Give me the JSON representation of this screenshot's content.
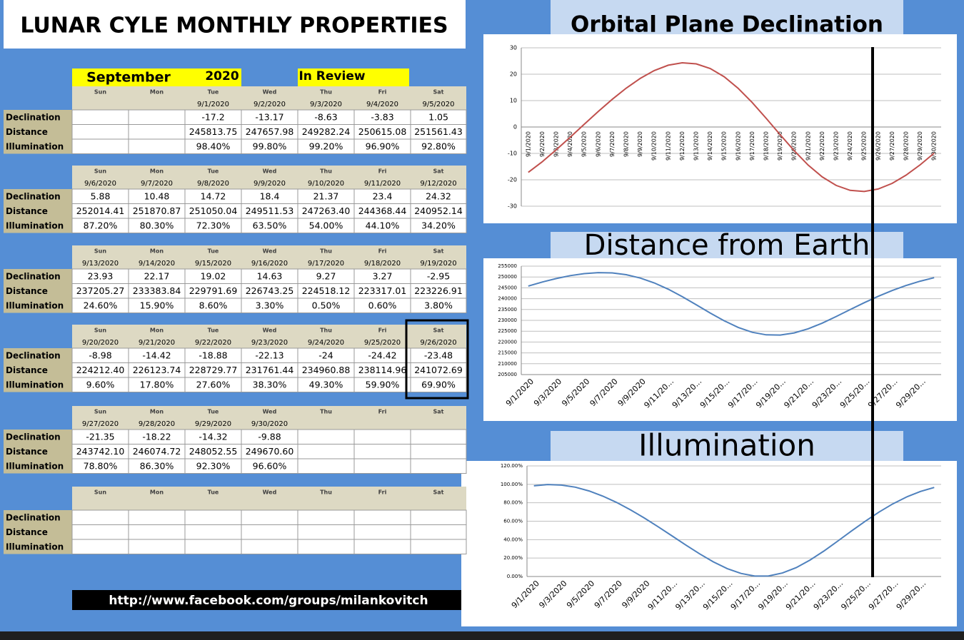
{
  "title": "LUNAR CYLE MONTHLY PROPERTIES",
  "calendar": {
    "month": "September",
    "year": "2020",
    "note": "In Review",
    "weeks": [
      {
        "days": [
          "Sun",
          "Mon",
          "Tue",
          "Wed",
          "Thu",
          "Fri",
          "Sat"
        ],
        "dates": [
          null,
          null,
          "9/1/2020",
          "9/2/2020",
          "9/3/2020",
          "9/4/2020",
          "9/5/2020"
        ],
        "rows": [
          {
            "label": "Declination",
            "cells": [
              null,
              null,
              "-17.2",
              "-13.17",
              "-8.63",
              "-3.83",
              "1.05"
            ]
          },
          {
            "label": "Distance",
            "cells": [
              null,
              null,
              "245813.75",
              "247657.98",
              "249282.24",
              "250615.08",
              "251561.43"
            ]
          },
          {
            "label": "Illumination",
            "cells": [
              null,
              null,
              "98.40%",
              "99.80%",
              "99.20%",
              "96.90%",
              "92.80%"
            ]
          }
        ]
      },
      {
        "days": [
          "Sun",
          "Mon",
          "Tue",
          "Wed",
          "Thu",
          "Fri",
          "Sat"
        ],
        "dates": [
          "9/6/2020",
          "9/7/2020",
          "9/8/2020",
          "9/9/2020",
          "9/10/2020",
          "9/11/2020",
          "9/12/2020"
        ],
        "rows": [
          {
            "label": "Declination",
            "cells": [
              "5.88",
              "10.48",
              "14.72",
              "18.4",
              "21.37",
              "23.4",
              "24.32"
            ]
          },
          {
            "label": "Distance",
            "cells": [
              "252014.41",
              "251870.87",
              "251050.04",
              "249511.53",
              "247263.40",
              "244368.44",
              "240952.14"
            ]
          },
          {
            "label": "Illumination",
            "cells": [
              "87.20%",
              "80.30%",
              "72.30%",
              "63.50%",
              "54.00%",
              "44.10%",
              "34.20%"
            ]
          }
        ]
      },
      {
        "days": [
          "Sun",
          "Mon",
          "Tue",
          "Wed",
          "Thu",
          "Fri",
          "Sat"
        ],
        "dates": [
          "9/13/2020",
          "9/14/2020",
          "9/15/2020",
          "9/16/2020",
          "9/17/2020",
          "9/18/2020",
          "9/19/2020"
        ],
        "rows": [
          {
            "label": "Declination",
            "cells": [
              "23.93",
              "22.17",
              "19.02",
              "14.63",
              "9.27",
              "3.27",
              "-2.95"
            ]
          },
          {
            "label": "Distance",
            "cells": [
              "237205.27",
              "233383.84",
              "229791.69",
              "226743.25",
              "224518.12",
              "223317.01",
              "223226.91"
            ]
          },
          {
            "label": "Illumination",
            "cells": [
              "24.60%",
              "15.90%",
              "8.60%",
              "3.30%",
              "0.50%",
              "0.60%",
              "3.80%"
            ]
          }
        ]
      },
      {
        "days": [
          "Sun",
          "Mon",
          "Tue",
          "Wed",
          "Thu",
          "Fri",
          "Sat"
        ],
        "dates": [
          "9/20/2020",
          "9/21/2020",
          "9/22/2020",
          "9/23/2020",
          "9/24/2020",
          "9/25/2020",
          "9/26/2020"
        ],
        "rows": [
          {
            "label": "Declination",
            "cells": [
              "-8.98",
              "-14.42",
              "-18.88",
              "-22.13",
              "-24",
              "-24.42",
              "-23.48"
            ]
          },
          {
            "label": "Distance",
            "cells": [
              "224212.40",
              "226123.74",
              "228729.77",
              "231761.44",
              "234960.88",
              "238114.96",
              "241072.69"
            ]
          },
          {
            "label": "Illumination",
            "cells": [
              "9.60%",
              "17.80%",
              "27.60%",
              "38.30%",
              "49.30%",
              "59.90%",
              "69.90%"
            ]
          }
        ]
      },
      {
        "days": [
          "Sun",
          "Mon",
          "Tue",
          "Wed",
          "Thu",
          "Fri",
          "Sat"
        ],
        "dates": [
          "9/27/2020",
          "9/28/2020",
          "9/29/2020",
          "9/30/2020",
          null,
          null,
          null
        ],
        "rows": [
          {
            "label": "Declination",
            "cells": [
              "-21.35",
              "-18.22",
              "-14.32",
              "-9.88",
              null,
              null,
              null
            ]
          },
          {
            "label": "Distance",
            "cells": [
              "243742.10",
              "246074.72",
              "248052.55",
              "249670.60",
              null,
              null,
              null
            ]
          },
          {
            "label": "Illumination",
            "cells": [
              "78.80%",
              "86.30%",
              "92.30%",
              "96.60%",
              null,
              null,
              null
            ]
          }
        ]
      },
      {
        "days": [
          "Sun",
          "Mon",
          "Tue",
          "Wed",
          "Thu",
          "Fri",
          "Sat"
        ],
        "dates": [
          null,
          null,
          null,
          null,
          null,
          null,
          null
        ],
        "rows": [
          {
            "label": "Declination",
            "cells": [
              null,
              null,
              null,
              null,
              null,
              null,
              null
            ]
          },
          {
            "label": "Distance",
            "cells": [
              null,
              null,
              null,
              null,
              null,
              null,
              null
            ]
          },
          {
            "label": "Illumination",
            "cells": [
              null,
              null,
              null,
              null,
              null,
              null,
              null
            ]
          }
        ]
      }
    ]
  },
  "footer": "http://www.facebook.com/groups/milankovitch",
  "chart_data": [
    {
      "type": "line",
      "title": "Orbital Plane Declination",
      "color": "#c0504d",
      "categories": [
        "9/1/2020",
        "9/2/2020",
        "9/3/2020",
        "9/4/2020",
        "9/5/2020",
        "9/6/2020",
        "9/7/2020",
        "9/8/2020",
        "9/9/2020",
        "9/10/2020",
        "9/11/2020",
        "9/12/2020",
        "9/13/2020",
        "9/14/2020",
        "9/15/2020",
        "9/16/2020",
        "9/17/2020",
        "9/18/2020",
        "9/19/2020",
        "9/20/2020",
        "9/21/2020",
        "9/22/2020",
        "9/23/2020",
        "9/24/2020",
        "9/25/2020",
        "9/26/2020",
        "9/27/2020",
        "9/28/2020",
        "9/29/2020",
        "9/30/2020"
      ],
      "values": [
        -17.2,
        -13.17,
        -8.63,
        -3.83,
        1.05,
        5.88,
        10.48,
        14.72,
        18.4,
        21.37,
        23.4,
        24.32,
        23.93,
        22.17,
        19.02,
        14.63,
        9.27,
        3.27,
        -2.95,
        -8.98,
        -14.42,
        -18.88,
        -22.13,
        -24,
        -24.42,
        -23.48,
        -21.35,
        -18.22,
        -14.32,
        -9.88
      ],
      "ylim": [
        -30,
        30
      ],
      "yticks": [
        -30,
        -20,
        -10,
        0,
        10,
        20,
        30
      ],
      "grid": true
    },
    {
      "type": "line",
      "title": "Distance from Earth",
      "color": "#4f81bd",
      "categories": [
        "9/1/2020",
        null,
        "9/3/2020",
        null,
        "9/5/2020",
        null,
        "9/7/2020",
        null,
        "9/9/2020",
        null,
        "9/11/20...",
        null,
        "9/13/20...",
        null,
        "9/15/20...",
        null,
        "9/17/20...",
        null,
        "9/19/20...",
        null,
        "9/21/20...",
        null,
        "9/23/20...",
        null,
        "9/25/20...",
        null,
        "9/27/20...",
        null,
        "9/29/20...",
        null
      ],
      "values": [
        245813.75,
        247657.98,
        249282.24,
        250615.08,
        251561.43,
        252014.41,
        251870.87,
        251050.04,
        249511.53,
        247263.4,
        244368.44,
        240952.14,
        237205.27,
        233383.84,
        229791.69,
        226743.25,
        224518.12,
        223317.01,
        223226.91,
        224212.4,
        226123.74,
        228729.77,
        231761.44,
        234960.88,
        238114.96,
        241072.69,
        243742.1,
        246074.72,
        248052.55,
        249670.6
      ],
      "ylim": [
        205000,
        255000
      ],
      "yticks": [
        205000,
        210000,
        215000,
        220000,
        225000,
        230000,
        235000,
        240000,
        245000,
        250000,
        255000
      ],
      "grid": true
    },
    {
      "type": "line",
      "title": "Illumination",
      "color": "#4f81bd",
      "categories": [
        "9/1/2020",
        null,
        "9/3/2020",
        null,
        "9/5/2020",
        null,
        "9/7/2020",
        null,
        "9/9/2020",
        null,
        "9/11/20...",
        null,
        "9/13/20...",
        null,
        "9/15/20...",
        null,
        "9/17/20...",
        null,
        "9/19/20...",
        null,
        "9/21/20...",
        null,
        "9/23/20...",
        null,
        "9/25/20...",
        null,
        "9/27/20...",
        null,
        "9/29/20...",
        null
      ],
      "values": [
        98.4,
        99.8,
        99.2,
        96.9,
        92.8,
        87.2,
        80.3,
        72.3,
        63.5,
        54,
        44.1,
        34.2,
        24.6,
        15.9,
        8.6,
        3.3,
        0.5,
        0.6,
        3.8,
        9.6,
        17.8,
        27.6,
        38.3,
        49.3,
        59.9,
        69.9,
        78.8,
        86.3,
        92.3,
        96.6
      ],
      "ylim": [
        0,
        120
      ],
      "yticks": [
        {
          "value": 0,
          "label": "0.00%"
        },
        {
          "value": 20,
          "label": "20.00%"
        },
        {
          "value": 40,
          "label": "40.00%"
        },
        {
          "value": 60,
          "label": "60.00%"
        },
        {
          "value": 80,
          "label": "80.00%"
        },
        {
          "value": 100,
          "label": "100.00%"
        },
        {
          "value": 120,
          "label": "120.00%"
        }
      ],
      "grid": true
    }
  ]
}
